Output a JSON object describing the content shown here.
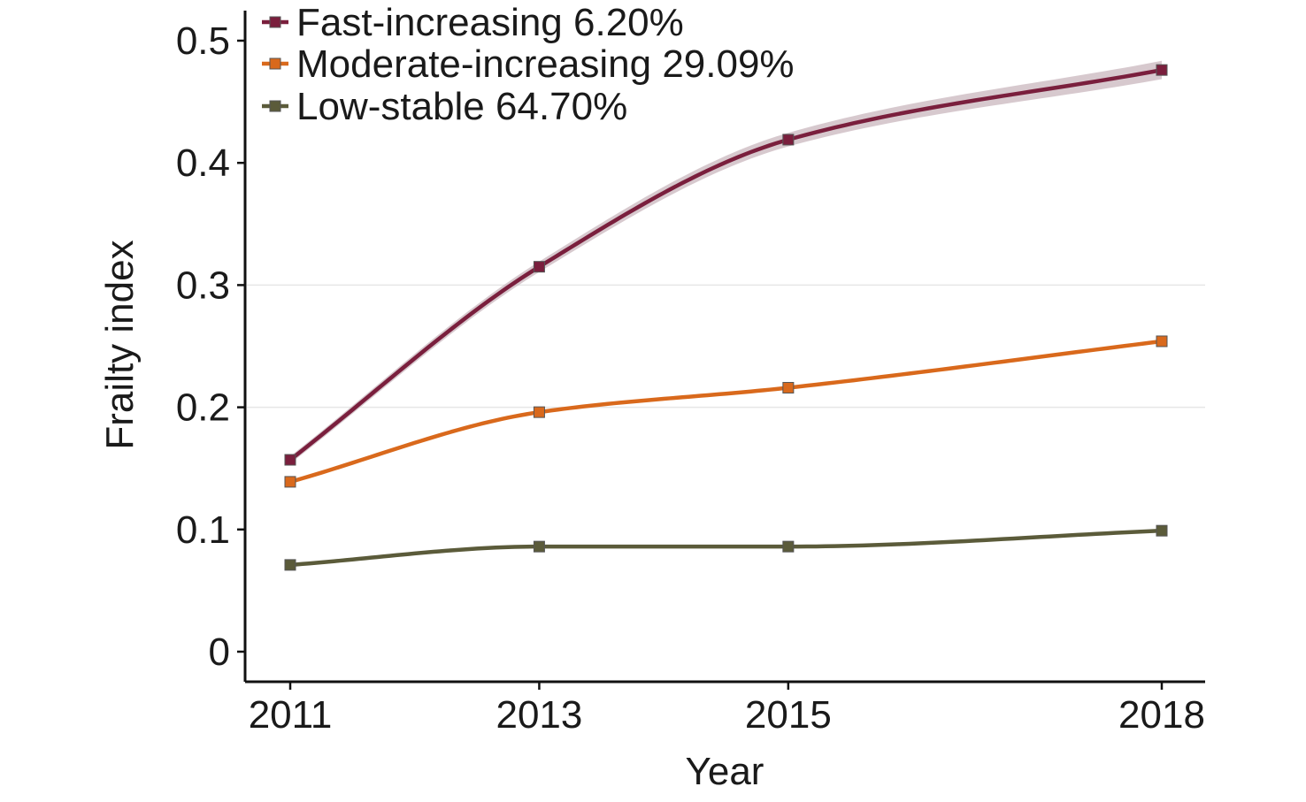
{
  "chart_data": {
    "type": "line",
    "xlabel": "Year",
    "ylabel": "Frailty index",
    "categories": [
      "2011",
      "2013",
      "2015",
      "2018"
    ],
    "x": [
      2011,
      2013,
      2015,
      2018
    ],
    "ylim": [
      0,
      0.5
    ],
    "yticks": [
      0,
      0.1,
      0.2,
      0.3,
      0.4,
      0.5
    ],
    "ytick_labels": [
      "0",
      "0.1",
      "0.2",
      "0.3",
      "0.4",
      "0.5"
    ],
    "grid": "horizontal at 0.2 and 0.3 only",
    "legend_position": "top-left",
    "series": [
      {
        "name": "Fast-increasing 6.20%",
        "values": [
          0.157,
          0.315,
          0.419,
          0.476
        ],
        "color": "#7a1f3d",
        "confidence_band": true
      },
      {
        "name": "Moderate-increasing 29.09%",
        "values": [
          0.139,
          0.196,
          0.216,
          0.254
        ],
        "color": "#d9691c"
      },
      {
        "name": "Low-stable 64.70%",
        "values": [
          0.071,
          0.086,
          0.086,
          0.099
        ],
        "color": "#5b5b3a"
      }
    ]
  }
}
